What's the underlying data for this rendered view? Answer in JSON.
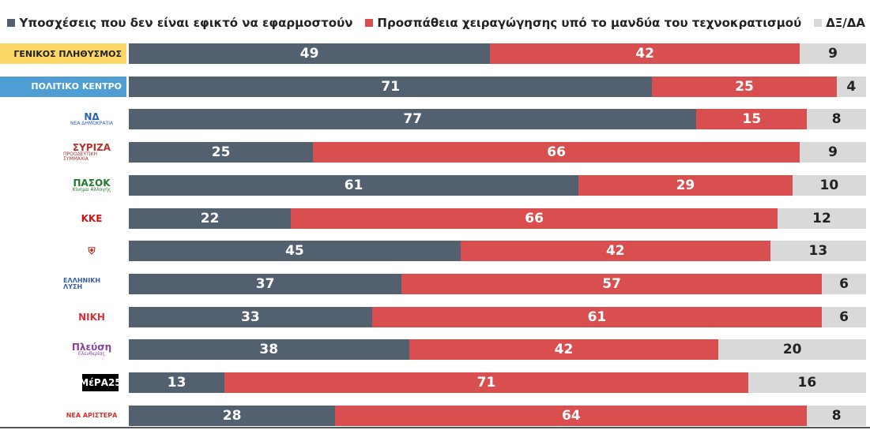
{
  "chart_data": {
    "type": "bar",
    "stacked": true,
    "orientation": "horizontal",
    "xlim": [
      0,
      100
    ],
    "legend_position": "top-right",
    "categories": [
      "ΓΕΝΙΚΟΣ ΠΛΗΘΥΣΜΟΣ",
      "ΠΟΛΙΤΙΚΟ ΚΕΝΤΡΟ",
      "ΝΔ",
      "ΣΥΡΙΖΑ",
      "ΠΑΣΟΚ",
      "ΚΚΕ",
      "Σπαρτιάτες",
      "Ελληνική Λύση",
      "ΝΙΚΗ",
      "Πλεύση Ελευθερίας",
      "ΜέΡΑ25",
      "Νέα Αριστερά"
    ],
    "series": [
      {
        "name": "Υποσχέσεις που δεν είναι εφικτό να εφαρμοστούν",
        "color": "#526070",
        "values": [
          49,
          71,
          77,
          25,
          61,
          22,
          45,
          37,
          33,
          38,
          13,
          28
        ]
      },
      {
        "name": "Προσπάθεια χειραγώγησης υπό το μανδύα του τεχνοκρατισμού",
        "color": "#d94f4f",
        "values": [
          42,
          25,
          15,
          66,
          29,
          66,
          42,
          57,
          61,
          42,
          71,
          64
        ]
      },
      {
        "name": "ΔΞ/ΔΑ",
        "color": "#d9d9d9",
        "values": [
          9,
          4,
          8,
          9,
          10,
          12,
          13,
          6,
          6,
          20,
          16,
          8
        ]
      }
    ]
  },
  "labels": {
    "general": {
      "text": "ΓΕΝΙΚΟΣ ΠΛΗΘΥΣΜΟΣ",
      "color": "#fcd667"
    },
    "center": {
      "text": "ΠΟΛΙΤΙΚΟ ΚΕΝΤΡΟ",
      "color": "#4e9ed3"
    }
  },
  "logos": [
    {
      "text": "ΝΔ",
      "sub": "ΝΕΑ ΔΗΜΟΚΡΑΤΙΑ",
      "color": "#2a62b0"
    },
    {
      "text": "ΣΥΡΙΖΑ",
      "sub": "ΠΡΟΟΔΕΥΤΙΚΗ ΣΥΜΜΑΧΙΑ",
      "color": "#b5332e"
    },
    {
      "text": "ΠΑΣΟΚ",
      "sub": "Κίνημα Αλλαγής",
      "color": "#1d7a2e"
    },
    {
      "text": "ΚΚΕ",
      "sub": "",
      "color": "#d0141a"
    },
    {
      "text": "⛨",
      "sub": "",
      "color": "#b8301f"
    },
    {
      "text": "ΕΛΛΗΝΙΚΗ ΛΥΣΗ",
      "sub": "",
      "color": "#3a5ea8"
    },
    {
      "text": "ΝΙΚΗ",
      "sub": "",
      "color": "#d0343a"
    },
    {
      "text": "Πλεύση",
      "sub": "Ελευθερίας",
      "color": "#8a3fa0"
    },
    {
      "text": "ΜέΡΑ25",
      "sub": "",
      "color": "#ffffff",
      "bg": "#000000"
    },
    {
      "text": "ΝΕΑ ΑΡΙΣΤΕΡΑ",
      "sub": "",
      "color": "#d9322c"
    }
  ]
}
